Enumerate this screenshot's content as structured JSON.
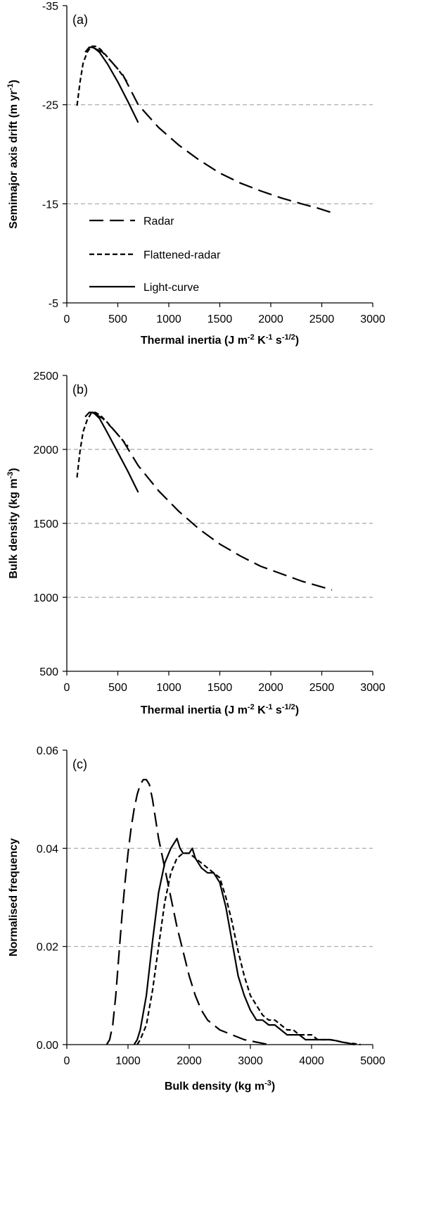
{
  "chart_data": [
    {
      "panel": "a",
      "type": "line",
      "panel_label": "(a)",
      "xlabel": "Thermal inertia (J m⁻² K⁻¹ s⁻¹ᐟ²)",
      "ylabel": "Semimajor axis drift (m yr⁻¹)",
      "xlim": [
        0,
        3000
      ],
      "ylim": [
        -35,
        -5
      ],
      "y_inverted": true,
      "xticks": [
        0,
        500,
        1000,
        1500,
        2000,
        2500,
        3000
      ],
      "yticks": [
        -35,
        -25,
        -15,
        -5
      ],
      "gridlines": [
        -25,
        -15
      ],
      "legend": [
        "Radar",
        "Flattened-radar",
        "Light-curve"
      ],
      "series": [
        {
          "name": "Radar",
          "style": "long-dash",
          "x": [
            250,
            350,
            450,
            550,
            700,
            900,
            1100,
            1300,
            1500,
            1700,
            1900,
            2100,
            2300,
            2450,
            2600
          ],
          "y": [
            -30.8,
            -30.3,
            -29.2,
            -28.0,
            -25.0,
            -22.7,
            -20.9,
            -19.4,
            -18.1,
            -17.1,
            -16.3,
            -15.6,
            -15.0,
            -14.6,
            -14.1
          ]
        },
        {
          "name": "Flattened-radar",
          "style": "short-dash",
          "x": [
            100,
            130,
            160,
            200,
            240,
            280,
            330,
            400,
            500,
            600
          ],
          "y": [
            -24.9,
            -27.3,
            -29.2,
            -30.3,
            -30.9,
            -30.9,
            -30.6,
            -29.8,
            -28.6,
            -27.2
          ]
        },
        {
          "name": "Light-curve",
          "style": "solid",
          "x": [
            180,
            220,
            260,
            320,
            400,
            500,
            600,
            700
          ],
          "y": [
            -30.3,
            -30.8,
            -30.8,
            -30.3,
            -29.1,
            -27.3,
            -25.3,
            -23.2
          ]
        }
      ]
    },
    {
      "panel": "b",
      "type": "line",
      "panel_label": "(b)",
      "xlabel": "Thermal inertia (J m⁻² K⁻¹ s⁻¹ᐟ²)",
      "ylabel": "Bulk density (kg m⁻³)",
      "xlim": [
        0,
        3000
      ],
      "ylim": [
        500,
        2500
      ],
      "xticks": [
        0,
        500,
        1000,
        1500,
        2000,
        2500,
        3000
      ],
      "yticks": [
        500,
        1000,
        1500,
        2000,
        2500
      ],
      "gridlines": [
        1000,
        1500,
        2000
      ],
      "series": [
        {
          "name": "Radar",
          "style": "long-dash",
          "x": [
            250,
            350,
            450,
            550,
            700,
            900,
            1100,
            1300,
            1500,
            1700,
            1900,
            2100,
            2300,
            2450,
            2600
          ],
          "y": [
            2250,
            2210,
            2140,
            2060,
            1890,
            1720,
            1580,
            1460,
            1360,
            1280,
            1210,
            1160,
            1110,
            1080,
            1050
          ]
        },
        {
          "name": "Flattened-radar",
          "style": "short-dash",
          "x": [
            100,
            130,
            160,
            200,
            240,
            280,
            330,
            400,
            500,
            600
          ],
          "y": [
            1810,
            1990,
            2120,
            2200,
            2245,
            2250,
            2230,
            2180,
            2100,
            2020
          ]
        },
        {
          "name": "Light-curve",
          "style": "solid",
          "x": [
            180,
            220,
            260,
            320,
            400,
            500,
            600,
            700
          ],
          "y": [
            2220,
            2250,
            2250,
            2210,
            2110,
            1980,
            1850,
            1710
          ]
        }
      ]
    },
    {
      "panel": "c",
      "type": "line",
      "panel_label": "(c)",
      "xlabel": "Bulk density (kg m⁻³)",
      "ylabel": "Normalised frequency",
      "xlim": [
        0,
        5000
      ],
      "ylim": [
        0,
        0.06
      ],
      "xticks": [
        0,
        1000,
        2000,
        3000,
        4000,
        5000
      ],
      "yticks": [
        0.0,
        0.02,
        0.04,
        0.06
      ],
      "ytick_labels": [
        "0.00",
        "0.02",
        "0.04",
        "0.06"
      ],
      "gridlines": [
        0.02,
        0.04
      ],
      "series": [
        {
          "name": "Radar",
          "style": "long-dash",
          "x": [
            650,
            700,
            750,
            800,
            850,
            900,
            950,
            1000,
            1050,
            1100,
            1150,
            1200,
            1250,
            1300,
            1350,
            1400,
            1450,
            1500,
            1600,
            1700,
            1800,
            1900,
            2000,
            2100,
            2200,
            2300,
            2400,
            2500,
            2700,
            2900,
            3100,
            3300
          ],
          "y": [
            0.0,
            0.001,
            0.004,
            0.01,
            0.018,
            0.026,
            0.033,
            0.039,
            0.044,
            0.048,
            0.051,
            0.053,
            0.054,
            0.054,
            0.053,
            0.05,
            0.046,
            0.042,
            0.036,
            0.03,
            0.024,
            0.019,
            0.014,
            0.01,
            0.007,
            0.005,
            0.004,
            0.003,
            0.002,
            0.001,
            0.0005,
            0.0
          ]
        },
        {
          "name": "Flattened-radar",
          "style": "short-dash",
          "x": [
            1150,
            1200,
            1300,
            1400,
            1500,
            1600,
            1700,
            1800,
            1900,
            2000,
            2100,
            2200,
            2300,
            2400,
            2500,
            2600,
            2700,
            2800,
            2900,
            3000,
            3100,
            3200,
            3300,
            3400,
            3500,
            3600,
            3700,
            3800,
            3900,
            4000,
            4100,
            4200,
            4300,
            4400,
            4500,
            4600,
            4700,
            4800
          ],
          "y": [
            0.0,
            0.001,
            0.004,
            0.011,
            0.02,
            0.029,
            0.035,
            0.038,
            0.039,
            0.039,
            0.038,
            0.037,
            0.036,
            0.035,
            0.034,
            0.03,
            0.025,
            0.019,
            0.014,
            0.01,
            0.008,
            0.006,
            0.005,
            0.005,
            0.004,
            0.003,
            0.003,
            0.002,
            0.002,
            0.002,
            0.001,
            0.001,
            0.001,
            0.0008,
            0.0005,
            0.0003,
            0.0002,
            0.0
          ]
        },
        {
          "name": "Light-curve",
          "style": "solid",
          "x": [
            1100,
            1150,
            1200,
            1300,
            1400,
            1500,
            1600,
            1700,
            1750,
            1800,
            1850,
            1900,
            2000,
            2050,
            2100,
            2200,
            2300,
            2400,
            2500,
            2600,
            2700,
            2800,
            2900,
            3000,
            3100,
            3200,
            3300,
            3400,
            3500,
            3600,
            3700,
            3800,
            3900,
            4000,
            4100,
            4200,
            4300,
            4400,
            4500,
            4600,
            4700
          ],
          "y": [
            0.0,
            0.001,
            0.003,
            0.01,
            0.021,
            0.031,
            0.037,
            0.04,
            0.041,
            0.042,
            0.04,
            0.039,
            0.039,
            0.04,
            0.038,
            0.036,
            0.035,
            0.035,
            0.033,
            0.028,
            0.021,
            0.014,
            0.01,
            0.007,
            0.005,
            0.005,
            0.004,
            0.004,
            0.003,
            0.002,
            0.002,
            0.002,
            0.001,
            0.001,
            0.001,
            0.001,
            0.001,
            0.0008,
            0.0005,
            0.0003,
            0.0
          ]
        }
      ]
    }
  ],
  "figure": {
    "grid_color": "#a6a6a6",
    "line_color": "#000000",
    "dash_styles": {
      "long-dash": "20,9",
      "short-dash": "7,4",
      "solid": ""
    }
  }
}
